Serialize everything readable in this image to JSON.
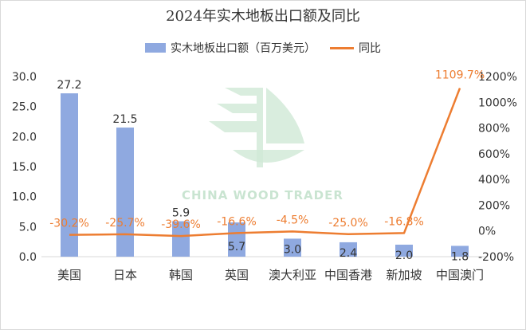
{
  "chart_data": {
    "type": "bar",
    "title": "2024年实木地板出口额及同比",
    "categories": [
      "美国",
      "日本",
      "韩国",
      "英国",
      "澳大利亚",
      "中国香港",
      "新加坡",
      "中国澳门"
    ],
    "series": [
      {
        "name": "实木地板出口额（百万美元）",
        "type": "bar",
        "axis": "left",
        "color": "#8fa9e0",
        "values": [
          27.2,
          21.5,
          5.9,
          5.7,
          3.0,
          2.4,
          2.0,
          1.8
        ],
        "labels": [
          "27.2",
          "21.5",
          "5.9",
          "5.7",
          "3.0",
          "2.4",
          "2.0",
          "1.8"
        ]
      },
      {
        "name": "同比",
        "type": "line",
        "axis": "right",
        "color": "#ed7d31",
        "values": [
          -30.2,
          -25.7,
          -39.6,
          -16.6,
          -4.5,
          -25.0,
          -16.8,
          1109.7
        ],
        "labels": [
          "-30.2%",
          "-25.7%",
          "-39.6%",
          "-16.6%",
          "-4.5%",
          "-25.0%",
          "-16.8%",
          "1109.7%"
        ]
      }
    ],
    "ylim": [
      0,
      30
    ],
    "yticks": [
      "0.0",
      "5.0",
      "10.0",
      "15.0",
      "20.0",
      "25.0",
      "30.0"
    ],
    "y2lim": [
      -200,
      1200
    ],
    "y2ticks": [
      "-200%",
      "0%",
      "200%",
      "400%",
      "600%",
      "800%",
      "1000%",
      "1200%"
    ],
    "legend_position": "top-center",
    "grid": false
  },
  "watermark": "CHINA WOOD TRADER"
}
